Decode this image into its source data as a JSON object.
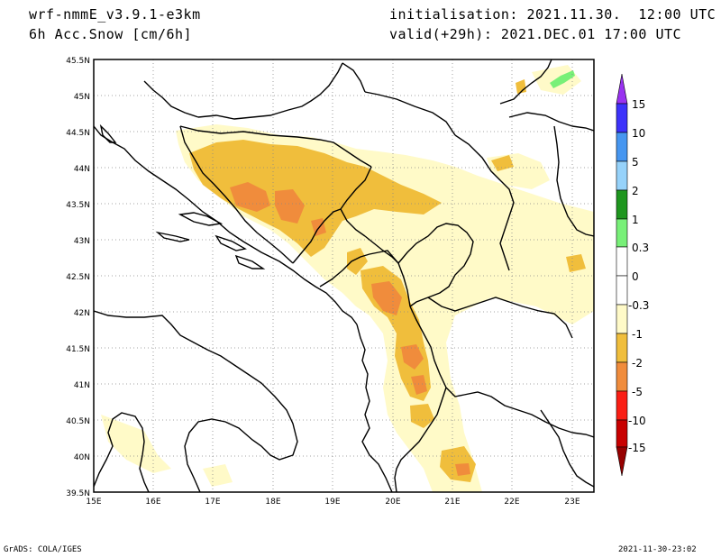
{
  "header": {
    "model": "wrf-nmmE_v3.9.1-e3km",
    "variable": "6h Acc.Snow [cm/6h]",
    "initialisation": "initialisation: 2021.11.30.  12:00 UTC",
    "valid": "valid(+29h): 2021.DEC.01 17:00 UTC"
  },
  "footer": {
    "credit": "GrADS: COLA/IGES",
    "timestamp": "2021-11-30-23:02"
  },
  "map": {
    "lat_labels": [
      "45.5N",
      "45N",
      "44.5N",
      "44N",
      "43.5N",
      "43N",
      "42.5N",
      "42N",
      "41.5N",
      "41N",
      "40.5N",
      "40N",
      "39.5N"
    ],
    "lon_labels": [
      "15E",
      "16E",
      "17E",
      "18E",
      "19E",
      "20E",
      "21E",
      "22E",
      "23E"
    ]
  },
  "colorbar": {
    "labels": [
      "15",
      "10",
      "5",
      "2",
      "1",
      "0.3",
      "0",
      "-0.3",
      "-1",
      "-2",
      "-5",
      "-10",
      "-15"
    ],
    "colors": {
      "purple": "#9932f0",
      "blue": "#3c32fa",
      "mid_blue": "#4696f0",
      "light_blue": "#96d2fa",
      "green": "#1e961e",
      "light_green": "#78f078",
      "white": "#ffffff",
      "pale_yellow": "#fffac8",
      "gold": "#f0be3c",
      "orange": "#f08c3c",
      "red": "#fa1e14",
      "dark_red": "#c80000",
      "maroon": "#960000"
    }
  }
}
